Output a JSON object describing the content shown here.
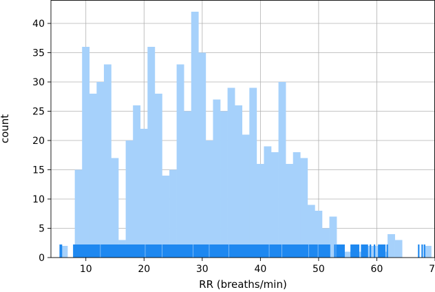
{
  "chart_data": {
    "type": "bar",
    "xlabel": "RR (breaths/min)",
    "ylabel": "count",
    "xlim": [
      4.0,
      70.0
    ],
    "ylim": [
      0,
      44
    ],
    "bin_start": 5.6,
    "bin_width": 1.25,
    "values": [
      2,
      0,
      15,
      36,
      28,
      30,
      33,
      17,
      3,
      20,
      26,
      22,
      36,
      28,
      14,
      15,
      33,
      25,
      42,
      35,
      20,
      27,
      25,
      29,
      26,
      21,
      29,
      16,
      19,
      18,
      30,
      16,
      18,
      17,
      9,
      8,
      5,
      7,
      2,
      1,
      2,
      1,
      2,
      2,
      1,
      4,
      3,
      0,
      0,
      0,
      2
    ],
    "xticks": [
      10,
      20,
      30,
      40,
      50,
      60,
      70
    ],
    "yticks": [
      0,
      5,
      10,
      15,
      20,
      25,
      30,
      35,
      40
    ],
    "grid": true,
    "rug": {
      "segments": [
        [
          7.8,
          52.0
        ],
        [
          53.0,
          54.5
        ],
        [
          55.5,
          57.0
        ],
        [
          57.5,
          58.5
        ],
        [
          60.2,
          61.5
        ]
      ],
      "points": [
        5.6,
        5.8,
        8.2,
        15.6,
        16.1,
        22.4,
        37.8,
        46.9,
        50.3,
        52.8,
        53.2,
        55.6,
        56.3,
        57.4,
        58.9,
        59.6,
        60.7,
        61.8,
        67.2,
        67.8,
        68.2
      ]
    },
    "colors": {
      "bars": "#a6d1fb",
      "rug": "#1e88f0",
      "grid": "#b0b0b0"
    }
  }
}
